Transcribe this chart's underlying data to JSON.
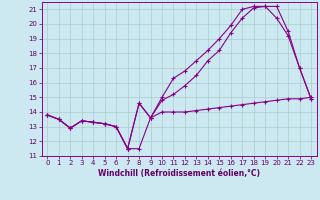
{
  "xlabel": "Windchill (Refroidissement éolien,°C)",
  "background_color": "#cce8f0",
  "grid_color": "#aacccc",
  "line_color": "#880088",
  "xlim": [
    -0.5,
    23.5
  ],
  "ylim": [
    11,
    21.5
  ],
  "yticks": [
    11,
    12,
    13,
    14,
    15,
    16,
    17,
    18,
    19,
    20,
    21
  ],
  "xticks": [
    0,
    1,
    2,
    3,
    4,
    5,
    6,
    7,
    8,
    9,
    10,
    11,
    12,
    13,
    14,
    15,
    16,
    17,
    18,
    19,
    20,
    21,
    22,
    23
  ],
  "series": [
    {
      "x": [
        0,
        1,
        2,
        3,
        4,
        5,
        6,
        7,
        8,
        9,
        10,
        11,
        12,
        13,
        14,
        15,
        16,
        17,
        18,
        19,
        20,
        21,
        22,
        23
      ],
      "y": [
        13.8,
        13.5,
        12.9,
        13.4,
        13.3,
        13.2,
        13.0,
        11.5,
        11.5,
        13.6,
        14.0,
        14.0,
        14.0,
        14.1,
        14.2,
        14.3,
        14.4,
        14.5,
        14.6,
        14.7,
        14.8,
        14.9,
        14.9,
        15.0
      ]
    },
    {
      "x": [
        0,
        1,
        2,
        3,
        4,
        5,
        6,
        7,
        8,
        9,
        10,
        11,
        12,
        13,
        14,
        15,
        16,
        17,
        18,
        19,
        20,
        21,
        22,
        23
      ],
      "y": [
        13.8,
        13.5,
        12.9,
        13.4,
        13.3,
        13.2,
        13.0,
        11.5,
        14.6,
        13.6,
        15.0,
        16.3,
        16.8,
        17.5,
        18.2,
        19.0,
        19.9,
        21.0,
        21.2,
        21.2,
        20.4,
        19.2,
        17.0,
        14.9
      ]
    },
    {
      "x": [
        0,
        1,
        2,
        3,
        4,
        5,
        6,
        7,
        8,
        9,
        10,
        11,
        12,
        13,
        14,
        15,
        16,
        17,
        18,
        19,
        20,
        21,
        22,
        23
      ],
      "y": [
        13.8,
        13.5,
        12.9,
        13.4,
        13.3,
        13.2,
        13.0,
        11.5,
        14.6,
        13.6,
        14.8,
        15.2,
        15.8,
        16.5,
        17.5,
        18.2,
        19.4,
        20.4,
        21.1,
        21.2,
        21.2,
        19.5,
        17.0,
        14.9
      ]
    }
  ]
}
